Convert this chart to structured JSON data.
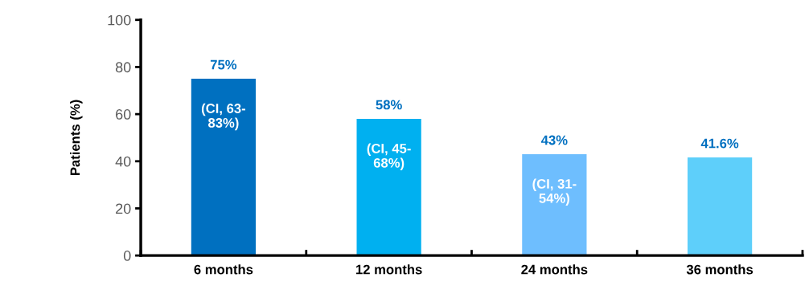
{
  "chart_data": {
    "type": "bar",
    "ylabel": "Patients (%)",
    "categories": [
      "6 months",
      "12 months",
      "24 months",
      "36 months"
    ],
    "values": [
      75,
      58,
      43,
      41.6
    ],
    "colors": [
      "#0070c0",
      "#00b0f0",
      "#6ebefe",
      "#5ecffa"
    ],
    "value_labels": [
      "75%",
      "58%",
      "43%",
      "41.6%"
    ],
    "annotations": [
      {
        "text": "(CI, 63-83%)",
        "x": "6 months",
        "y": 75
      },
      {
        "text": "(CI, 45-68%)",
        "x": "12 months",
        "y": 58
      },
      {
        "text": "(CI, 31-54%)",
        "x": "24 months",
        "y": 43
      }
    ],
    "ylim": [
      0,
      100
    ],
    "yticks": [
      0,
      20,
      40,
      60,
      80,
      100
    ],
    "grid": false,
    "legend": false
  }
}
